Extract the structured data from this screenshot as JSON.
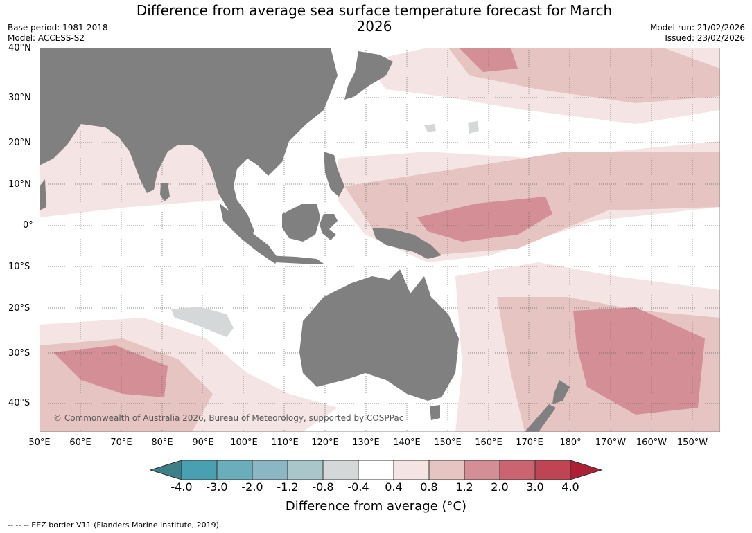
{
  "title": "Difference from average sea surface temperature forecast for March 2026",
  "header": {
    "base_period": "Base period: 1981-2018",
    "model": "Model: ACCESS-S2",
    "model_run": "Model run: 21/02/2026",
    "issued": "Issued: 23/02/2026"
  },
  "map": {
    "lat_labels": [
      "40°N",
      "30°N",
      "20°N",
      "10°N",
      "0°",
      "10°S",
      "20°S",
      "30°S",
      "40°S"
    ],
    "lon_labels": [
      "50°E",
      "60°E",
      "70°E",
      "80°E",
      "90°E",
      "100°E",
      "110°E",
      "120°E",
      "130°E",
      "140°E",
      "150°E",
      "160°E",
      "170°E",
      "180°",
      "170°W",
      "160°W",
      "150°W"
    ],
    "copyright": "© Commonwealth of Australia 2026, Bureau of Meteorology, supported by COSPPac"
  },
  "colorbar": {
    "ticks": [
      "-4.0",
      "-3.0",
      "-2.0",
      "-1.2",
      "-0.8",
      "-0.4",
      "0.4",
      "0.8",
      "1.2",
      "2.0",
      "3.0",
      "4.0"
    ],
    "colors": [
      "#3d7f86",
      "#48a0b0",
      "#6aaebb",
      "#8ab7c3",
      "#a9c6ca",
      "#d4d8d9",
      "#ffffff",
      "#f4e4e3",
      "#e6c4c2",
      "#d48e95",
      "#c96470",
      "#bf4454",
      "#ad1f35"
    ],
    "label": "Difference from average (°C)",
    "land_color": "#808080"
  },
  "footer": {
    "eez_note": "--  --  -- EEZ border V11 (Flanders Marine Institute, 2019)."
  }
}
